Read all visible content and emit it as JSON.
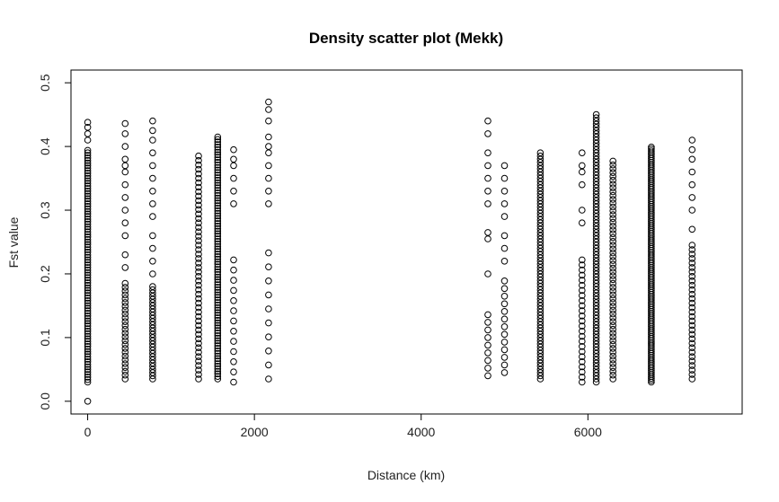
{
  "chart_data": {
    "type": "scatter",
    "title": "Density scatter plot (Mekk)",
    "xlabel": "Distance (km)",
    "ylabel": "Fst value",
    "xlim": [
      -200,
      7850
    ],
    "ylim": [
      -0.02,
      0.52
    ],
    "x_ticks": [
      0,
      2000,
      4000,
      6000
    ],
    "x_tick_labels": [
      "0",
      "2000",
      "4000",
      "6000"
    ],
    "y_ticks": [
      0.0,
      0.1,
      0.2,
      0.3,
      0.4,
      0.5
    ],
    "y_tick_labels": [
      "0.0",
      "0.1",
      "0.2",
      "0.3",
      "0.4",
      "0.5"
    ],
    "grid": false,
    "marker": "open-circle",
    "columns": [
      {
        "x": 0,
        "ymin": 0.03,
        "ymax": 0.395,
        "step": 0.004,
        "extra": [
          0.0,
          0.41,
          0.42,
          0.43,
          0.438
        ]
      },
      {
        "x": 450,
        "ymin": 0.035,
        "ymax": 0.19,
        "step": 0.006,
        "extra": [
          0.21,
          0.23,
          0.26,
          0.28,
          0.3,
          0.32,
          0.34,
          0.36,
          0.37,
          0.38,
          0.4,
          0.42,
          0.436
        ]
      },
      {
        "x": 780,
        "ymin": 0.035,
        "ymax": 0.18,
        "step": 0.005,
        "extra": [
          0.2,
          0.22,
          0.24,
          0.26,
          0.29,
          0.31,
          0.33,
          0.35,
          0.37,
          0.39,
          0.41,
          0.425,
          0.44
        ]
      },
      {
        "x": 1330,
        "ymin": 0.035,
        "ymax": 0.385,
        "step": 0.007,
        "extra": []
      },
      {
        "x": 1560,
        "ymin": 0.035,
        "ymax": 0.415,
        "step": 0.004,
        "extra": []
      },
      {
        "x": 1750,
        "ymin": 0.03,
        "ymax": 0.23,
        "step": 0.016,
        "extra": [
          0.31,
          0.33,
          0.35,
          0.37,
          0.38,
          0.395
        ]
      },
      {
        "x": 2170,
        "ymin": 0.035,
        "ymax": 0.235,
        "step": 0.022,
        "extra": [
          0.31,
          0.33,
          0.35,
          0.37,
          0.39,
          0.4,
          0.415,
          0.44,
          0.458,
          0.47
        ]
      },
      {
        "x": 4800,
        "ymin": 0.04,
        "ymax": 0.14,
        "step": 0.012,
        "extra": [
          0.2,
          0.255,
          0.265,
          0.31,
          0.33,
          0.35,
          0.37,
          0.39,
          0.42,
          0.44
        ]
      },
      {
        "x": 5000,
        "ymin": 0.045,
        "ymax": 0.19,
        "step": 0.012,
        "extra": [
          0.22,
          0.24,
          0.26,
          0.29,
          0.31,
          0.33,
          0.35,
          0.37
        ]
      },
      {
        "x": 5430,
        "ymin": 0.035,
        "ymax": 0.39,
        "step": 0.005,
        "extra": []
      },
      {
        "x": 5930,
        "ymin": 0.03,
        "ymax": 0.225,
        "step": 0.008,
        "extra": [
          0.28,
          0.3,
          0.34,
          0.36,
          0.37,
          0.39
        ]
      },
      {
        "x": 6100,
        "ymin": 0.03,
        "ymax": 0.45,
        "step": 0.005,
        "extra": []
      },
      {
        "x": 6300,
        "ymin": 0.035,
        "ymax": 0.38,
        "step": 0.006,
        "extra": []
      },
      {
        "x": 6760,
        "ymin": 0.03,
        "ymax": 0.4,
        "step": 0.003,
        "extra": []
      },
      {
        "x": 7250,
        "ymin": 0.035,
        "ymax": 0.245,
        "step": 0.007,
        "extra": [
          0.27,
          0.3,
          0.32,
          0.34,
          0.36,
          0.38,
          0.395,
          0.41
        ]
      }
    ]
  }
}
